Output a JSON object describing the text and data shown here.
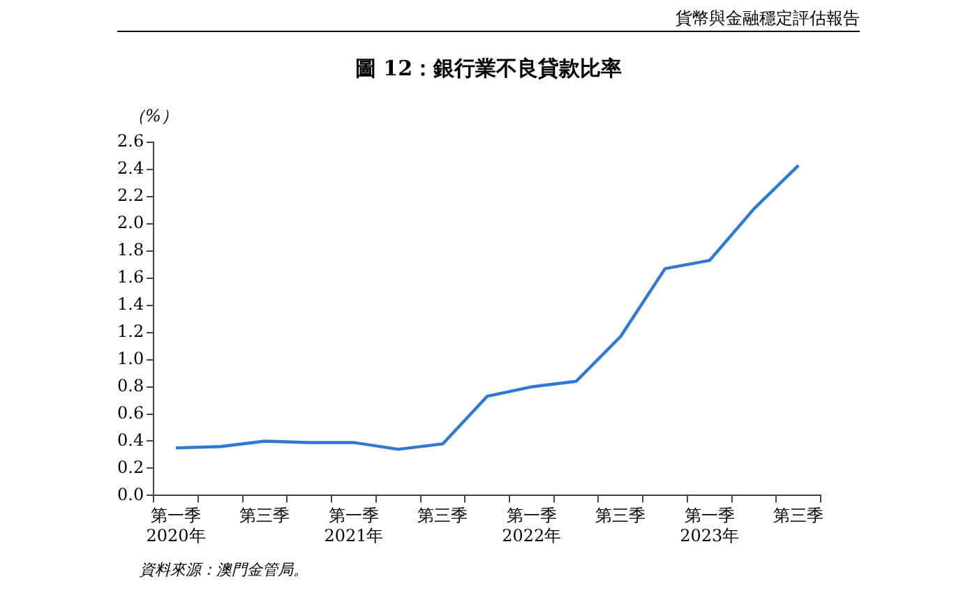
{
  "chart_data": {
    "type": "line",
    "title": "圖 12：銀行業不良貸款比率",
    "ylabel": "（%）",
    "annotations": [
      "貨幣與金融穩定評估報告",
      "資料來源：澳門金管局。"
    ],
    "categories": [
      "第一季\n2020年",
      null,
      "第三季",
      null,
      "第一季\n2021年",
      null,
      "第三季",
      null,
      "第一季\n2022年",
      null,
      "第三季",
      null,
      "第一季\n2023年",
      null,
      "第三季"
    ],
    "series": [
      {
        "color": "#2f78d4",
        "values": [
          0.35,
          0.36,
          0.4,
          0.39,
          0.39,
          0.34,
          0.38,
          0.73,
          0.8,
          0.84,
          1.17,
          1.67,
          1.73,
          2.11,
          2.43
        ]
      }
    ],
    "ylim": [
      0,
      2.6
    ],
    "yticks": [
      {
        "value": 0,
        "label": "0.0"
      },
      0.2,
      0.4,
      0.6,
      0.8,
      {
        "value": 1,
        "label": "1.0"
      },
      1.2,
      1.4,
      1.6,
      1.8,
      {
        "value": 2,
        "label": "2.0"
      },
      2.2,
      2.4,
      2.6
    ],
    "grid": false,
    "legend": false,
    "marker": "none",
    "line_style": "solid"
  }
}
